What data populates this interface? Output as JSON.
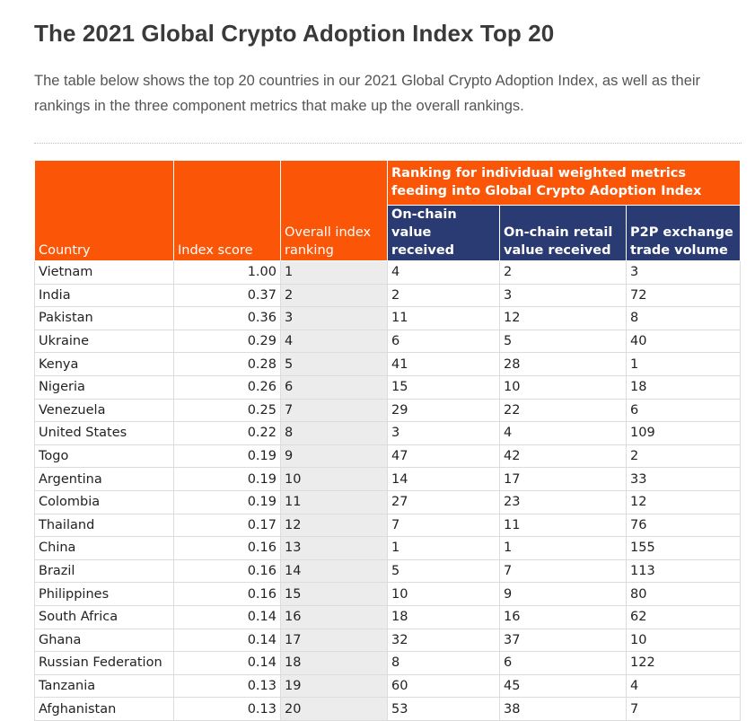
{
  "title": "The 2021 Global Crypto Adoption Index Top 20",
  "intro": "The table below shows the top 20 countries in our 2021 Global Crypto Adoption Index, as well as their rankings in the three component metrics that make up the overall rankings.",
  "colors": {
    "header_orange": "#fb5607",
    "header_navy": "#2a3a72",
    "rank_column_gray": "#ececec"
  },
  "table": {
    "headers": {
      "country": "Country",
      "index_score": "Index score",
      "overall_rank": "Overall index ranking",
      "group": "Ranking for individual weighted metrics feeding into Global Crypto Adoption Index",
      "onchain_value": "On-chain value received",
      "onchain_retail": "On-chain retail value received",
      "p2p": "P2P exchange trade volume"
    },
    "rows": [
      [
        "Vietnam",
        "1.00",
        "1",
        "4",
        "2",
        "3"
      ],
      [
        "India",
        "0.37",
        "2",
        "2",
        "3",
        "72"
      ],
      [
        "Pakistan",
        "0.36",
        "3",
        "11",
        "12",
        "8"
      ],
      [
        "Ukraine",
        "0.29",
        "4",
        "6",
        "5",
        "40"
      ],
      [
        "Kenya",
        "0.28",
        "5",
        "41",
        "28",
        "1"
      ],
      [
        "Nigeria",
        "0.26",
        "6",
        "15",
        "10",
        "18"
      ],
      [
        "Venezuela",
        "0.25",
        "7",
        "29",
        "22",
        "6"
      ],
      [
        "United States",
        "0.22",
        "8",
        "3",
        "4",
        "109"
      ],
      [
        "Togo",
        "0.19",
        "9",
        "47",
        "42",
        "2"
      ],
      [
        "Argentina",
        "0.19",
        "10",
        "14",
        "17",
        "33"
      ],
      [
        "Colombia",
        "0.19",
        "11",
        "27",
        "23",
        "12"
      ],
      [
        "Thailand",
        "0.17",
        "12",
        "7",
        "11",
        "76"
      ],
      [
        "China",
        "0.16",
        "13",
        "1",
        "1",
        "155"
      ],
      [
        "Brazil",
        "0.16",
        "14",
        "5",
        "7",
        "113"
      ],
      [
        "Philippines",
        "0.16",
        "15",
        "10",
        "9",
        "80"
      ],
      [
        "South Africa",
        "0.14",
        "16",
        "18",
        "16",
        "62"
      ],
      [
        "Ghana",
        "0.14",
        "17",
        "32",
        "37",
        "10"
      ],
      [
        "Russian Federation",
        "0.14",
        "18",
        "8",
        "6",
        "122"
      ],
      [
        "Tanzania",
        "0.13",
        "19",
        "60",
        "45",
        "4"
      ],
      [
        "Afghanistan",
        "0.13",
        "20",
        "53",
        "38",
        "7"
      ]
    ]
  }
}
